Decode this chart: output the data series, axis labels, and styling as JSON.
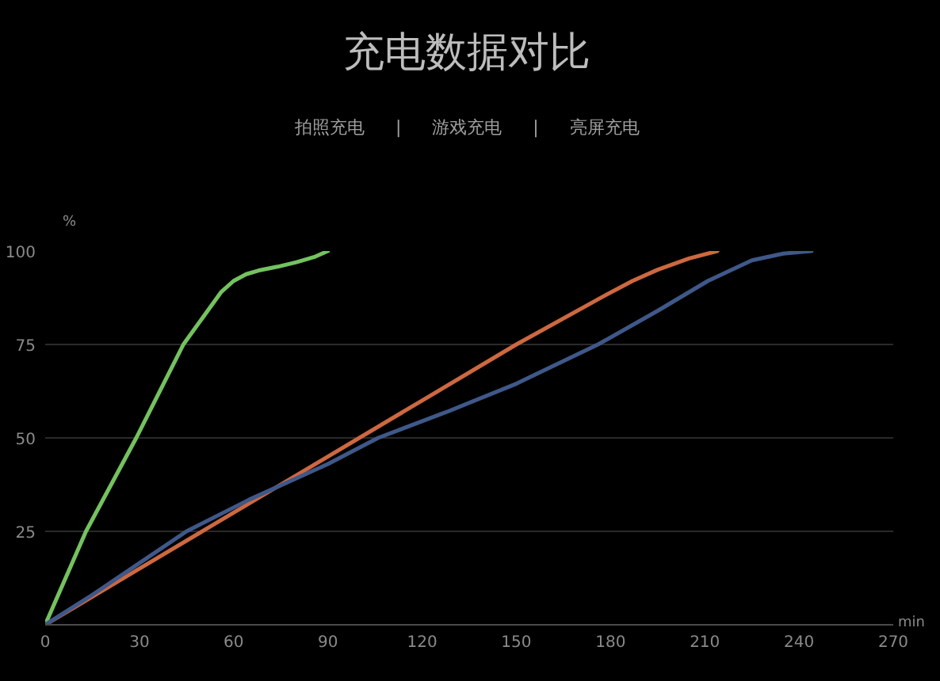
{
  "chart_data": {
    "type": "line",
    "title": "充电数据对比",
    "annotations": [
      "拍照充电",
      "|",
      "游戏充电",
      "|",
      "亮屏充电"
    ],
    "xlabel": "min",
    "ylabel": "%",
    "xlim": [
      0,
      270
    ],
    "ylim": [
      0,
      100
    ],
    "xticks": [
      0,
      30,
      60,
      90,
      120,
      150,
      180,
      210,
      240,
      270
    ],
    "yticks": [
      25,
      50,
      75,
      100
    ],
    "grid": "y",
    "series": [
      {
        "color": "#74c25f",
        "x": [
          0,
          13,
          29,
          44,
          50,
          56,
          60,
          64,
          68,
          74,
          80,
          86,
          90
        ],
        "values": [
          0,
          25,
          50,
          75,
          82,
          89,
          92,
          93.8,
          94.8,
          95.8,
          97,
          98.5,
          100
        ]
      },
      {
        "color": "#cd6840",
        "x": [
          0,
          30,
          60,
          90,
          120,
          150,
          178,
          187,
          195,
          205,
          214
        ],
        "values": [
          0,
          15,
          30,
          45,
          60,
          75,
          88,
          92,
          95,
          98,
          100
        ]
      },
      {
        "color": "#3f5889",
        "x": [
          0,
          15,
          30,
          45,
          65,
          90,
          106,
          128,
          150,
          176,
          195,
          211,
          225,
          235,
          244
        ],
        "values": [
          0,
          8,
          16.5,
          25,
          33.5,
          43,
          50,
          57,
          64.5,
          75,
          84,
          92,
          97.5,
          99.3,
          100
        ]
      }
    ]
  }
}
